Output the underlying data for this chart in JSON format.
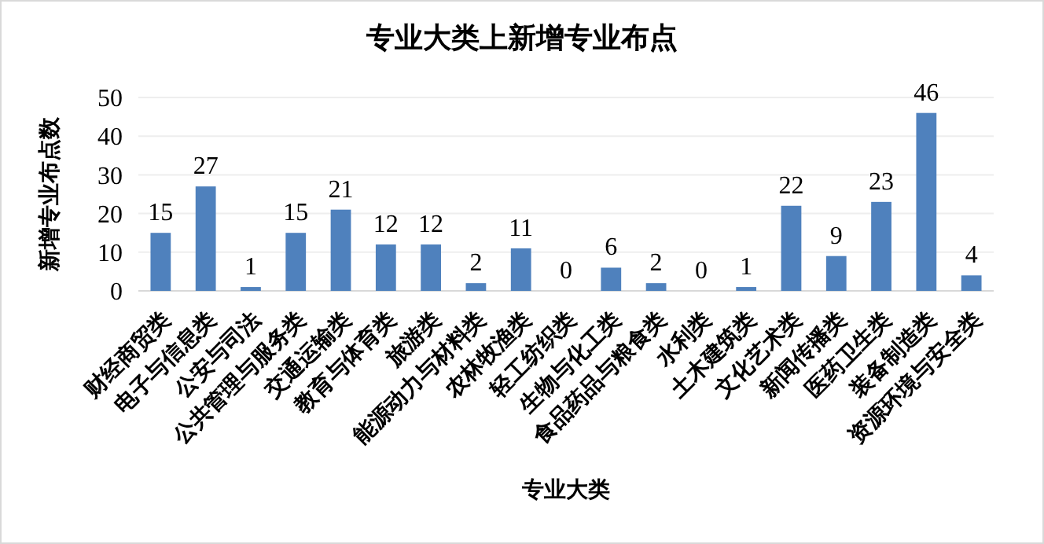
{
  "chart_data": {
    "type": "bar",
    "title": "专业大类上新增专业布点",
    "xlabel": "专业大类",
    "ylabel": "新增专业布点数",
    "categories": [
      "财经商贸类",
      "电子与信息类",
      "公安与司法",
      "公共管理与服务类",
      "交通运输类",
      "教育与体育类",
      "旅游类",
      "能源动力与材料类",
      "农林牧渔类",
      "轻工纺织类",
      "生物与化工类",
      "食品药品与粮食类",
      "水利类",
      "土木建筑类",
      "文化艺术类",
      "新闻传播类",
      "医药卫生类",
      "装备制造类",
      "资源环境与安全类"
    ],
    "values": [
      15,
      27,
      1,
      15,
      21,
      12,
      12,
      2,
      11,
      0,
      6,
      2,
      0,
      1,
      22,
      9,
      23,
      46,
      4
    ],
    "color": "#4f81bd",
    "ylim": [
      0,
      50
    ],
    "yticks": [
      0,
      10,
      20,
      30,
      40,
      50
    ],
    "grid": "y",
    "data_labels": true
  }
}
